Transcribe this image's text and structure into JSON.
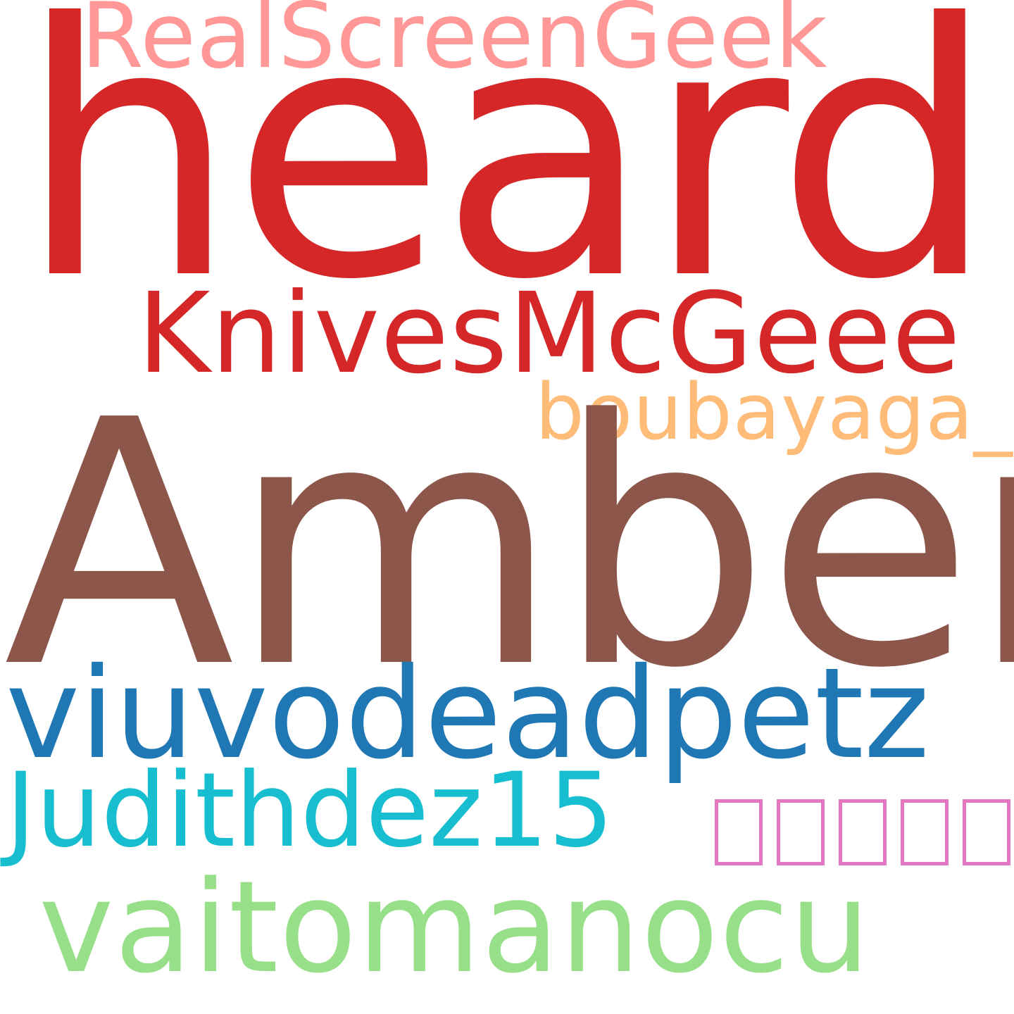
{
  "words": {
    "heard": {
      "text": "heard",
      "color": "#d62728"
    },
    "realscreengeek": {
      "text": "RealScreenGeek",
      "color": "#ff9896"
    },
    "knivesmcgeee": {
      "text": "KnivesMcGeee",
      "color": "#d62728"
    },
    "boubayaga": {
      "text": "boubayaga_",
      "color": "#ffbb78"
    },
    "amber": {
      "text": "Amber",
      "color": "#8c564b"
    },
    "viuvodeadpetz": {
      "text": "viuvodeadpetz",
      "color": "#1f77b4"
    },
    "judithdez15": {
      "text": "Judithdez15",
      "color": "#17becf"
    },
    "unrendered_glyphs": {
      "text": "□□□□□",
      "color": "#e377c2"
    },
    "vaitomanocu": {
      "text": "vaitomanocu",
      "color": "#98df8a"
    }
  }
}
